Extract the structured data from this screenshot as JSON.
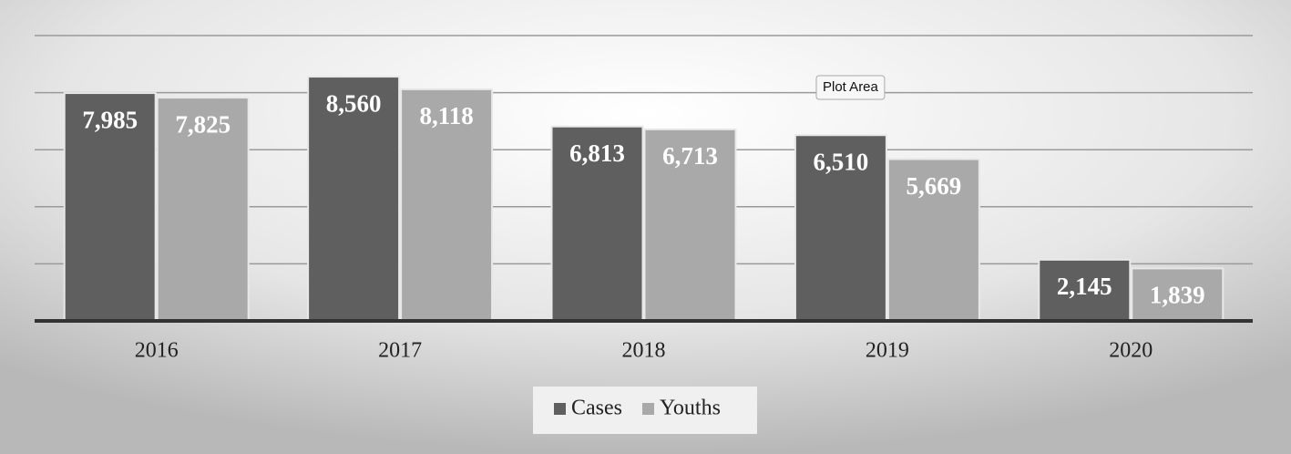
{
  "chart_data": {
    "type": "bar",
    "categories": [
      "2016",
      "2017",
      "2018",
      "2019",
      "2020"
    ],
    "series": [
      {
        "name": "Cases",
        "color": "#5f5f5f",
        "values": [
          7985,
          8560,
          6813,
          6510,
          2145
        ],
        "value_labels": [
          "7,985",
          "8,560",
          "6,813",
          "6,510",
          "2,145"
        ]
      },
      {
        "name": "Youths",
        "color": "#a9a9a9",
        "values": [
          7825,
          8118,
          6713,
          5669,
          1839
        ],
        "value_labels": [
          "7,825",
          "8,118",
          "6,713",
          "5,669",
          "1,839"
        ]
      }
    ],
    "ylim": [
      0,
      10000
    ],
    "yticks": [
      0,
      2000,
      4000,
      6000,
      8000,
      10000
    ],
    "grid": true,
    "legend": "bottom",
    "tooltip": "Plot Area"
  }
}
